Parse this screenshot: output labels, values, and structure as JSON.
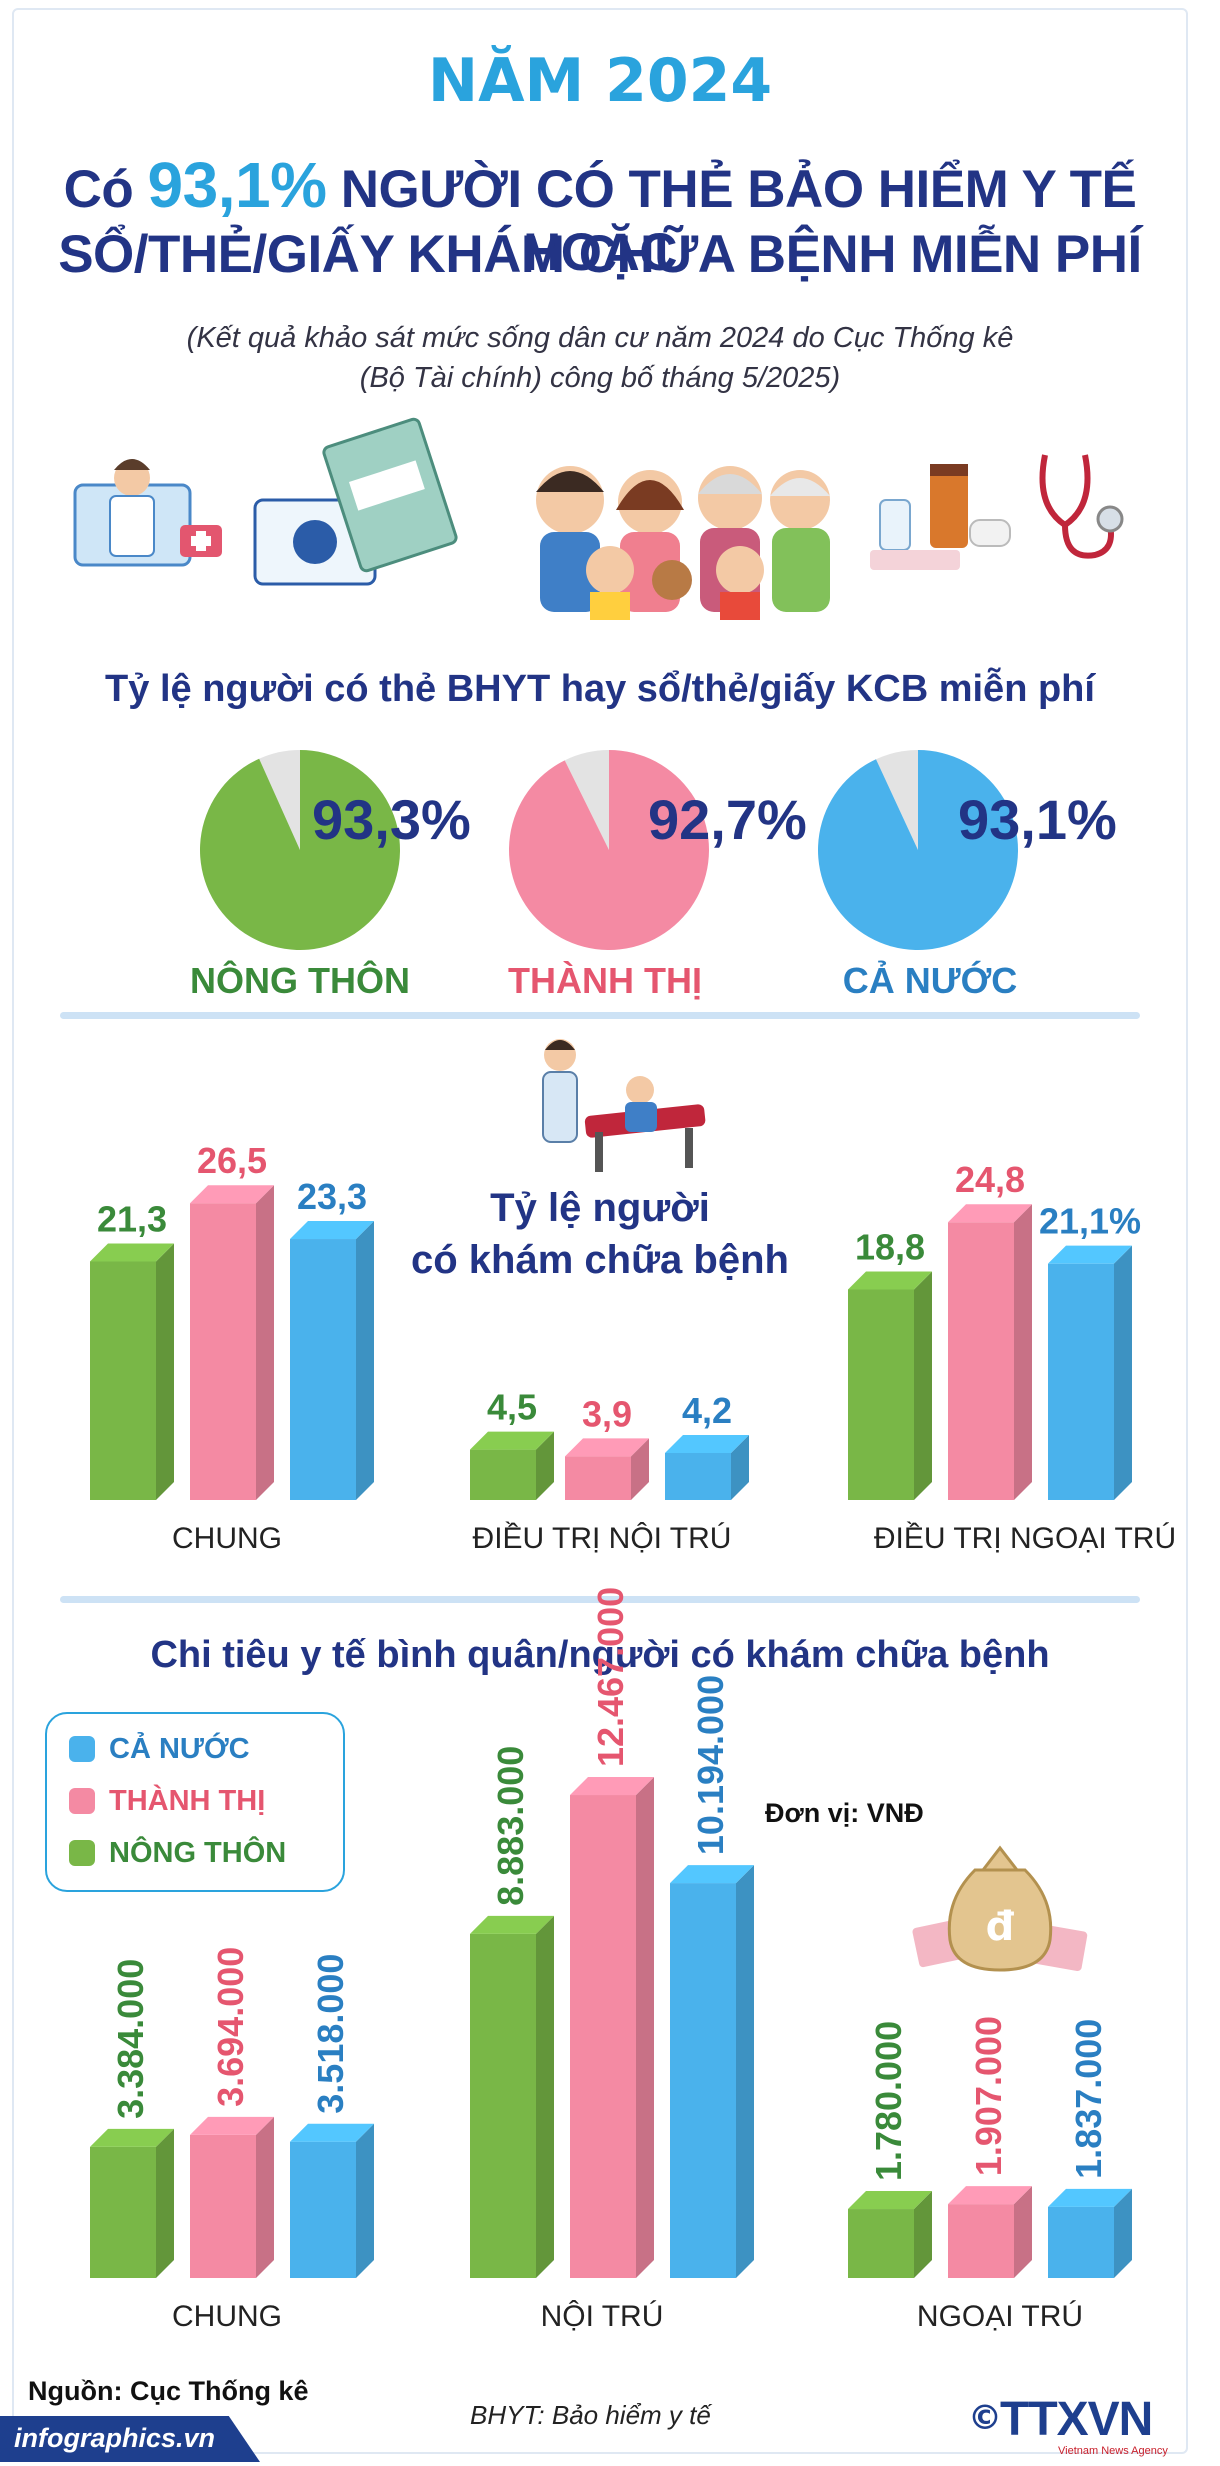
{
  "header": {
    "year": "NĂM 2024",
    "headline_pre": "Có",
    "headline_pct": "93,1%",
    "headline_post": " NGƯỜI CÓ THẺ BẢO HIỂM Y TẾ HOẶC",
    "headline_line2": "SỔ/THẺ/GIẤY KHÁM CHỮA BỆNH MIỄN PHÍ",
    "sub_line1": "(Kết quả khảo sát mức sống dân cư năm 2024 do Cục Thống kê",
    "sub_line2": "(Bộ Tài chính) công bố tháng 5/2025)"
  },
  "colors": {
    "green": "#79b747",
    "pink": "#f48aa3",
    "blue": "#4ab2ec",
    "navy": "#223485",
    "cyan": "#2aa3dd",
    "grey_slice": "#e3e3e3"
  },
  "chart_data": [
    {
      "type": "pie",
      "title": "Tỷ lệ người có thẻ BHYT hay sổ/thẻ/giấy KCB miễn phí",
      "pies": [
        {
          "label": "NÔNG THÔN",
          "value": 93.3,
          "display": "93,3%",
          "color": "#79b747",
          "label_color": "#3a8a3a"
        },
        {
          "label": "THÀNH THỊ",
          "value": 92.7,
          "display": "92,7%",
          "color": "#f48aa3",
          "label_color": "#e5566f"
        },
        {
          "label": "CẢ NƯỚC",
          "value": 93.1,
          "display": "93,1%",
          "color": "#4ab2ec",
          "label_color": "#2a7fc2"
        }
      ]
    },
    {
      "type": "bar",
      "title_line1": "Tỷ lệ người",
      "title_line2": "có khám chữa bệnh",
      "categories": [
        "CHUNG",
        "ĐIỀU TRỊ NỘI TRÚ",
        "ĐIỀU TRỊ NGOẠI TRÚ"
      ],
      "series": [
        {
          "color": "#79b747",
          "values": [
            21.3,
            4.5,
            18.8
          ],
          "labels": [
            "21,3",
            "4,5",
            "18,8"
          ]
        },
        {
          "color": "#f48aa3",
          "values": [
            26.5,
            3.9,
            24.8
          ],
          "labels": [
            "26,5",
            "3,9",
            "24,8"
          ]
        },
        {
          "color": "#4ab2ec",
          "values": [
            23.3,
            4.2,
            21.1
          ],
          "labels": [
            "23,3",
            "4,2",
            "21,1%"
          ]
        }
      ]
    },
    {
      "type": "bar",
      "title": "Chi tiêu y tế bình quân/người có khám chữa bệnh",
      "unit": "Đơn vị: VNĐ",
      "categories": [
        "CHUNG",
        "NỘI TRÚ",
        "NGOẠI TRÚ"
      ],
      "legend": [
        {
          "name": "CẢ NƯỚC",
          "color": "#4ab2ec",
          "text_color": "#2a7fc2"
        },
        {
          "name": "THÀNH THỊ",
          "color": "#f48aa3",
          "text_color": "#e5566f"
        },
        {
          "name": "NÔNG THÔN",
          "color": "#79b747",
          "text_color": "#3a8a3a"
        }
      ],
      "series": [
        {
          "name": "NÔNG THÔN",
          "color": "#79b747",
          "values": [
            3384000,
            8883000,
            1780000
          ],
          "labels": [
            "3.384.000",
            "8.883.000",
            "1.780.000"
          ]
        },
        {
          "name": "THÀNH THỊ",
          "color": "#f48aa3",
          "values": [
            3694000,
            12467000,
            1907000
          ],
          "labels": [
            "3.694.000",
            "12.467.000",
            "1.907.000"
          ]
        },
        {
          "name": "CẢ NƯỚC",
          "color": "#4ab2ec",
          "values": [
            3518000,
            10194000,
            1837000
          ],
          "labels": [
            "3.518.000",
            "10.194.000",
            "1.837.000"
          ]
        }
      ]
    }
  ],
  "footer": {
    "source": "Nguồn: Cục Thống kê",
    "note": "BHYT: Bảo hiểm y tế",
    "site": "infographics.vn",
    "copyright": "©",
    "logo": "TTXVN",
    "logo_sub": "Vietnam News Agency"
  },
  "illustrations": [
    "doctor-laptop-icon",
    "insurance-card-icon",
    "family-illustration",
    "medicine-icon",
    "stethoscope-icon",
    "doctor-patient-icon",
    "money-bag-icon"
  ]
}
